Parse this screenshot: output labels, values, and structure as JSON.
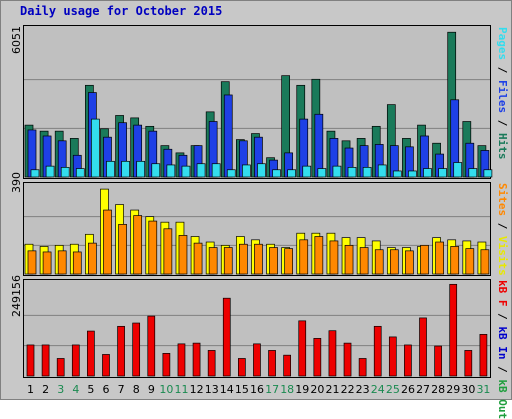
{
  "title": "Daily usage for October 2015",
  "colors": {
    "hits": "#1a7a5a",
    "files": "#1e40e6",
    "pages": "#33ddee",
    "visits": "#ffff00",
    "sites": "#ff8800",
    "kbin": "#0000cc",
    "kbout": "#1e9e3c",
    "kbf": "#ee0000",
    "weekday_label": "#000000",
    "weekend_label": "#1a8a50"
  },
  "chart_data": [
    {
      "type": "bar",
      "panel": "hits",
      "ymax_label": "6051",
      "ylim": [
        0,
        6051
      ],
      "legend": [
        "Pages",
        "Files",
        "Hits"
      ],
      "categories": [
        "1",
        "2",
        "3",
        "4",
        "5",
        "6",
        "7",
        "8",
        "9",
        "10",
        "11",
        "12",
        "13",
        "14",
        "15",
        "16",
        "17",
        "18",
        "19",
        "20",
        "21",
        "22",
        "23",
        "24",
        "25",
        "26",
        "27",
        "28",
        "29",
        "30",
        "31"
      ],
      "series": [
        {
          "name": "Hits",
          "values": [
            2150,
            1900,
            1900,
            1600,
            3800,
            2000,
            2550,
            2450,
            2100,
            1300,
            1000,
            1300,
            2700,
            3950,
            1550,
            1800,
            800,
            4200,
            3800,
            4050,
            1900,
            1500,
            1600,
            2100,
            3000,
            1600,
            2150,
            1400,
            6000,
            2300,
            1300
          ]
        },
        {
          "name": "Files",
          "values": [
            1950,
            1700,
            1500,
            900,
            3500,
            1650,
            2250,
            2150,
            1900,
            1150,
            900,
            1300,
            2300,
            3400,
            1500,
            1650,
            700,
            1000,
            2400,
            2600,
            1600,
            1200,
            1300,
            1350,
            1300,
            1250,
            1700,
            950,
            3200,
            1400,
            1100
          ]
        },
        {
          "name": "Pages",
          "values": [
            300,
            450,
            400,
            350,
            2400,
            650,
            650,
            650,
            550,
            500,
            450,
            550,
            550,
            300,
            500,
            550,
            300,
            300,
            450,
            350,
            450,
            400,
            400,
            500,
            250,
            250,
            350,
            350,
            600,
            350,
            300
          ]
        }
      ]
    },
    {
      "type": "bar",
      "panel": "visits",
      "ymax_label": "390",
      "ylim": [
        0,
        390
      ],
      "legend": [
        "Sites",
        "Visits"
      ],
      "categories": [
        "1",
        "2",
        "3",
        "4",
        "5",
        "6",
        "7",
        "8",
        "9",
        "10",
        "11",
        "12",
        "13",
        "14",
        "15",
        "16",
        "17",
        "18",
        "19",
        "20",
        "21",
        "22",
        "23",
        "24",
        "25",
        "26",
        "27",
        "28",
        "29",
        "30",
        "31"
      ],
      "series": [
        {
          "name": "Visits",
          "values": [
            135,
            125,
            130,
            135,
            180,
            385,
            315,
            290,
            260,
            235,
            235,
            170,
            145,
            130,
            170,
            155,
            135,
            120,
            185,
            185,
            185,
            165,
            165,
            150,
            120,
            120,
            125,
            165,
            155,
            150,
            145
          ]
        },
        {
          "name": "Sites",
          "values": [
            105,
            100,
            105,
            100,
            140,
            290,
            225,
            265,
            240,
            205,
            175,
            140,
            120,
            120,
            135,
            135,
            120,
            115,
            155,
            170,
            150,
            130,
            120,
            110,
            110,
            105,
            130,
            145,
            125,
            115,
            110
          ]
        }
      ]
    },
    {
      "type": "bar",
      "panel": "kbytes",
      "ymax_label": "249156",
      "ylim": [
        0,
        249156
      ],
      "legend": [
        "kB F",
        "kB In",
        "kB Out"
      ],
      "categories": [
        "1",
        "2",
        "3",
        "4",
        "5",
        "6",
        "7",
        "8",
        "9",
        "10",
        "11",
        "12",
        "13",
        "14",
        "15",
        "16",
        "17",
        "18",
        "19",
        "20",
        "21",
        "22",
        "23",
        "24",
        "25",
        "26",
        "27",
        "28",
        "29",
        "30",
        "31"
      ],
      "series": [
        {
          "name": "kB F",
          "values": [
            85000,
            85000,
            48000,
            85000,
            123000,
            59000,
            136000,
            145000,
            164000,
            62000,
            88000,
            90000,
            70000,
            213000,
            48000,
            88000,
            70000,
            57000,
            151000,
            103000,
            124000,
            90000,
            48000,
            136000,
            107000,
            85000,
            159000,
            82000,
            251000,
            70000,
            114000
          ]
        }
      ]
    }
  ],
  "xaxis": {
    "labels": [
      "1",
      "2",
      "3",
      "4",
      "5",
      "6",
      "7",
      "8",
      "9",
      "10",
      "11",
      "12",
      "13",
      "14",
      "15",
      "16",
      "17",
      "18",
      "19",
      "20",
      "21",
      "22",
      "23",
      "24",
      "25",
      "26",
      "27",
      "28",
      "29",
      "30",
      "31"
    ],
    "weekends": [
      "3",
      "4",
      "10",
      "11",
      "17",
      "18",
      "24",
      "25",
      "31"
    ]
  }
}
